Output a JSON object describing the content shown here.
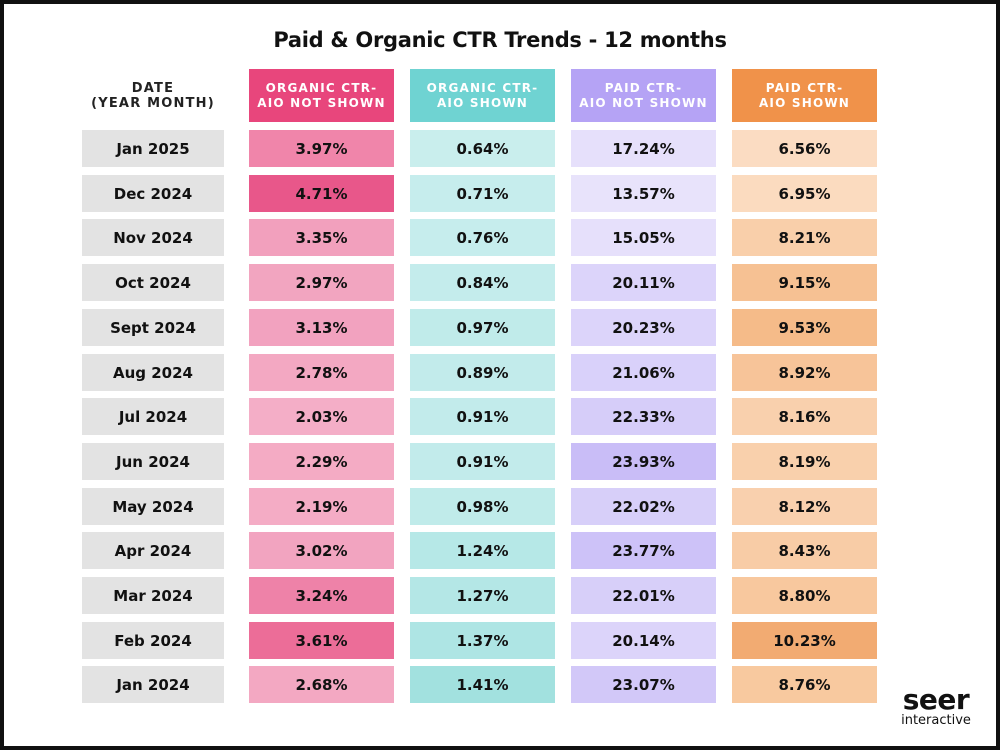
{
  "chart_data": {
    "type": "table",
    "title": "Paid & Organic CTR Trends - 12 months",
    "columns": [
      {
        "label": "DATE\n(YEAR MONTH)",
        "header_color": "#ffffff",
        "header_text": "#222222"
      },
      {
        "label": "ORGANIC CTR-\nAIO NOT SHOWN",
        "header_color": "#e8467c",
        "header_text": "#ffffff"
      },
      {
        "label": "ORGANIC CTR-\nAIO SHOWN",
        "header_color": "#6fd3d2",
        "header_text": "#ffffff"
      },
      {
        "label": "PAID CTR-\nAIO NOT SHOWN",
        "header_color": "#b5a3f5",
        "header_text": "#ffffff"
      },
      {
        "label": "PAID CTR-\nAIO SHOWN",
        "header_color": "#f0924a",
        "header_text": "#ffffff"
      }
    ],
    "rows": [
      {
        "date": "Jan 2025",
        "values": [
          "3.97%",
          "0.64%",
          "17.24%",
          "6.56%"
        ],
        "colors": [
          "#f085aa",
          "#c9eeed",
          "#e6e0fb",
          "#fbdcc2"
        ]
      },
      {
        "date": "Dec 2024",
        "values": [
          "4.71%",
          "0.71%",
          "13.57%",
          "6.95%"
        ],
        "colors": [
          "#e8578a",
          "#c6eded",
          "#e8e3fb",
          "#fbdbbf"
        ]
      },
      {
        "date": "Nov 2024",
        "values": [
          "3.35%",
          "0.76%",
          "15.05%",
          "8.21%"
        ],
        "colors": [
          "#f2a0bd",
          "#c6eded",
          "#e6e0fb",
          "#f9cfaa"
        ]
      },
      {
        "date": "Oct 2024",
        "values": [
          "2.97%",
          "0.84%",
          "20.11%",
          "9.15%"
        ],
        "colors": [
          "#f2a5c0",
          "#c4ecec",
          "#dcd4fa",
          "#f6c193"
        ]
      },
      {
        "date": "Sept 2024",
        "values": [
          "3.13%",
          "0.97%",
          "20.23%",
          "9.53%"
        ],
        "colors": [
          "#f2a2bf",
          "#c0ebea",
          "#dcd4fa",
          "#f5bb89"
        ]
      },
      {
        "date": "Aug 2024",
        "values": [
          "2.78%",
          "0.89%",
          "21.06%",
          "8.92%"
        ],
        "colors": [
          "#f3a8c2",
          "#c2ebeb",
          "#d9d1fa",
          "#f7c499"
        ]
      },
      {
        "date": "Jul 2024",
        "values": [
          "2.03%",
          "0.91%",
          "22.33%",
          "8.16%"
        ],
        "colors": [
          "#f4aec7",
          "#c2ebeb",
          "#d6cdf9",
          "#f9d0ad"
        ]
      },
      {
        "date": "Jun 2024",
        "values": [
          "2.29%",
          "0.91%",
          "23.93%",
          "8.19%"
        ],
        "colors": [
          "#f4abc4",
          "#c2ebeb",
          "#c9bdf7",
          "#f9d0ac"
        ]
      },
      {
        "date": "May 2024",
        "values": [
          "2.19%",
          "0.98%",
          "22.02%",
          "8.12%"
        ],
        "colors": [
          "#f4acc5",
          "#c0ebea",
          "#d7cff9",
          "#f9d0ae"
        ]
      },
      {
        "date": "Apr 2024",
        "values": [
          "3.02%",
          "1.24%",
          "23.77%",
          "8.43%"
        ],
        "colors": [
          "#f2a4c0",
          "#b6e8e7",
          "#cdc2f8",
          "#f8cca6"
        ]
      },
      {
        "date": "Mar 2024",
        "values": [
          "3.24%",
          "1.27%",
          "22.01%",
          "8.80%"
        ],
        "colors": [
          "#ee82a8",
          "#b4e7e6",
          "#d7cff9",
          "#f8c89e"
        ]
      },
      {
        "date": "Feb 2024",
        "values": [
          "3.61%",
          "1.37%",
          "20.14%",
          "10.23%"
        ],
        "colors": [
          "#ec6d98",
          "#aee5e4",
          "#dcd4fa",
          "#f2ab72"
        ]
      },
      {
        "date": "Jan 2024",
        "values": [
          "2.68%",
          "1.41%",
          "23.07%",
          "8.76%"
        ],
        "colors": [
          "#f3a8c2",
          "#a2e1df",
          "#d2c8f8",
          "#f8c99f"
        ]
      }
    ],
    "date_cell_color": "#e3e3e3"
  },
  "brand": {
    "name": "seer",
    "tagline": "interactive"
  }
}
